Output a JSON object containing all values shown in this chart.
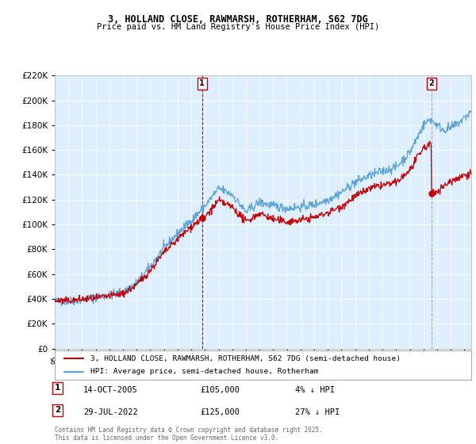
{
  "title1": "3, HOLLAND CLOSE, RAWMARSH, ROTHERHAM, S62 7DG",
  "title2": "Price paid vs. HM Land Registry's House Price Index (HPI)",
  "legend_line1": "3, HOLLAND CLOSE, RAWMARSH, ROTHERHAM, S62 7DG (semi-detached house)",
  "legend_line2": "HPI: Average price, semi-detached house, Rotherham",
  "marker1_date": "14-OCT-2005",
  "marker1_price": "£105,000",
  "marker1_hpi": "4% ↓ HPI",
  "marker2_date": "29-JUL-2022",
  "marker2_price": "£125,000",
  "marker2_hpi": "27% ↓ HPI",
  "footnote": "Contains HM Land Registry data © Crown copyright and database right 2025.\nThis data is licensed under the Open Government Licence v3.0.",
  "sale1_year": 2005.79,
  "sale1_price": 105000,
  "sale2_year": 2022.58,
  "sale2_price": 125000,
  "hpi_color": "#5ba3d9",
  "sale_color": "#cc0000",
  "vline1_color": "#cc0000",
  "vline2_color": "#aaaaaa",
  "background_color": "#ffffff",
  "plot_bg_color": "#ddeeff",
  "grid_color": "#ffffff",
  "xmin": 1995,
  "xmax": 2025.5,
  "ymin": 0,
  "ymax": 220000
}
